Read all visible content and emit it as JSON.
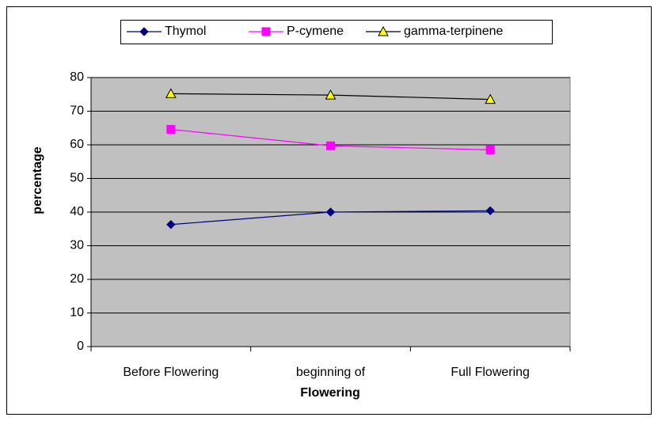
{
  "chart_data": {
    "type": "line",
    "categories": [
      "Before Flowering",
      "beginning of",
      "Full Flowering"
    ],
    "xlabel": "Flowering",
    "ylabel": "percentage",
    "series": [
      {
        "name": "Thymol",
        "color": "#000080",
        "marker": "diamond",
        "values": [
          36.3,
          40,
          40.4
        ]
      },
      {
        "name": "P-cymene",
        "color": "#ff00ff",
        "marker": "square",
        "values": [
          64.6,
          59.7,
          58.5
        ]
      },
      {
        "name": "gamma-terpinene",
        "color": "#000000",
        "marker_fill": "#ffff00",
        "marker": "triangle",
        "values": [
          75.2,
          74.8,
          73.5
        ]
      }
    ],
    "ylim": [
      0,
      80
    ],
    "yticks": [
      0,
      10,
      20,
      30,
      40,
      50,
      60,
      70,
      80
    ],
    "grid": true,
    "plot_background": "#c0c0c0",
    "legend": "top"
  }
}
